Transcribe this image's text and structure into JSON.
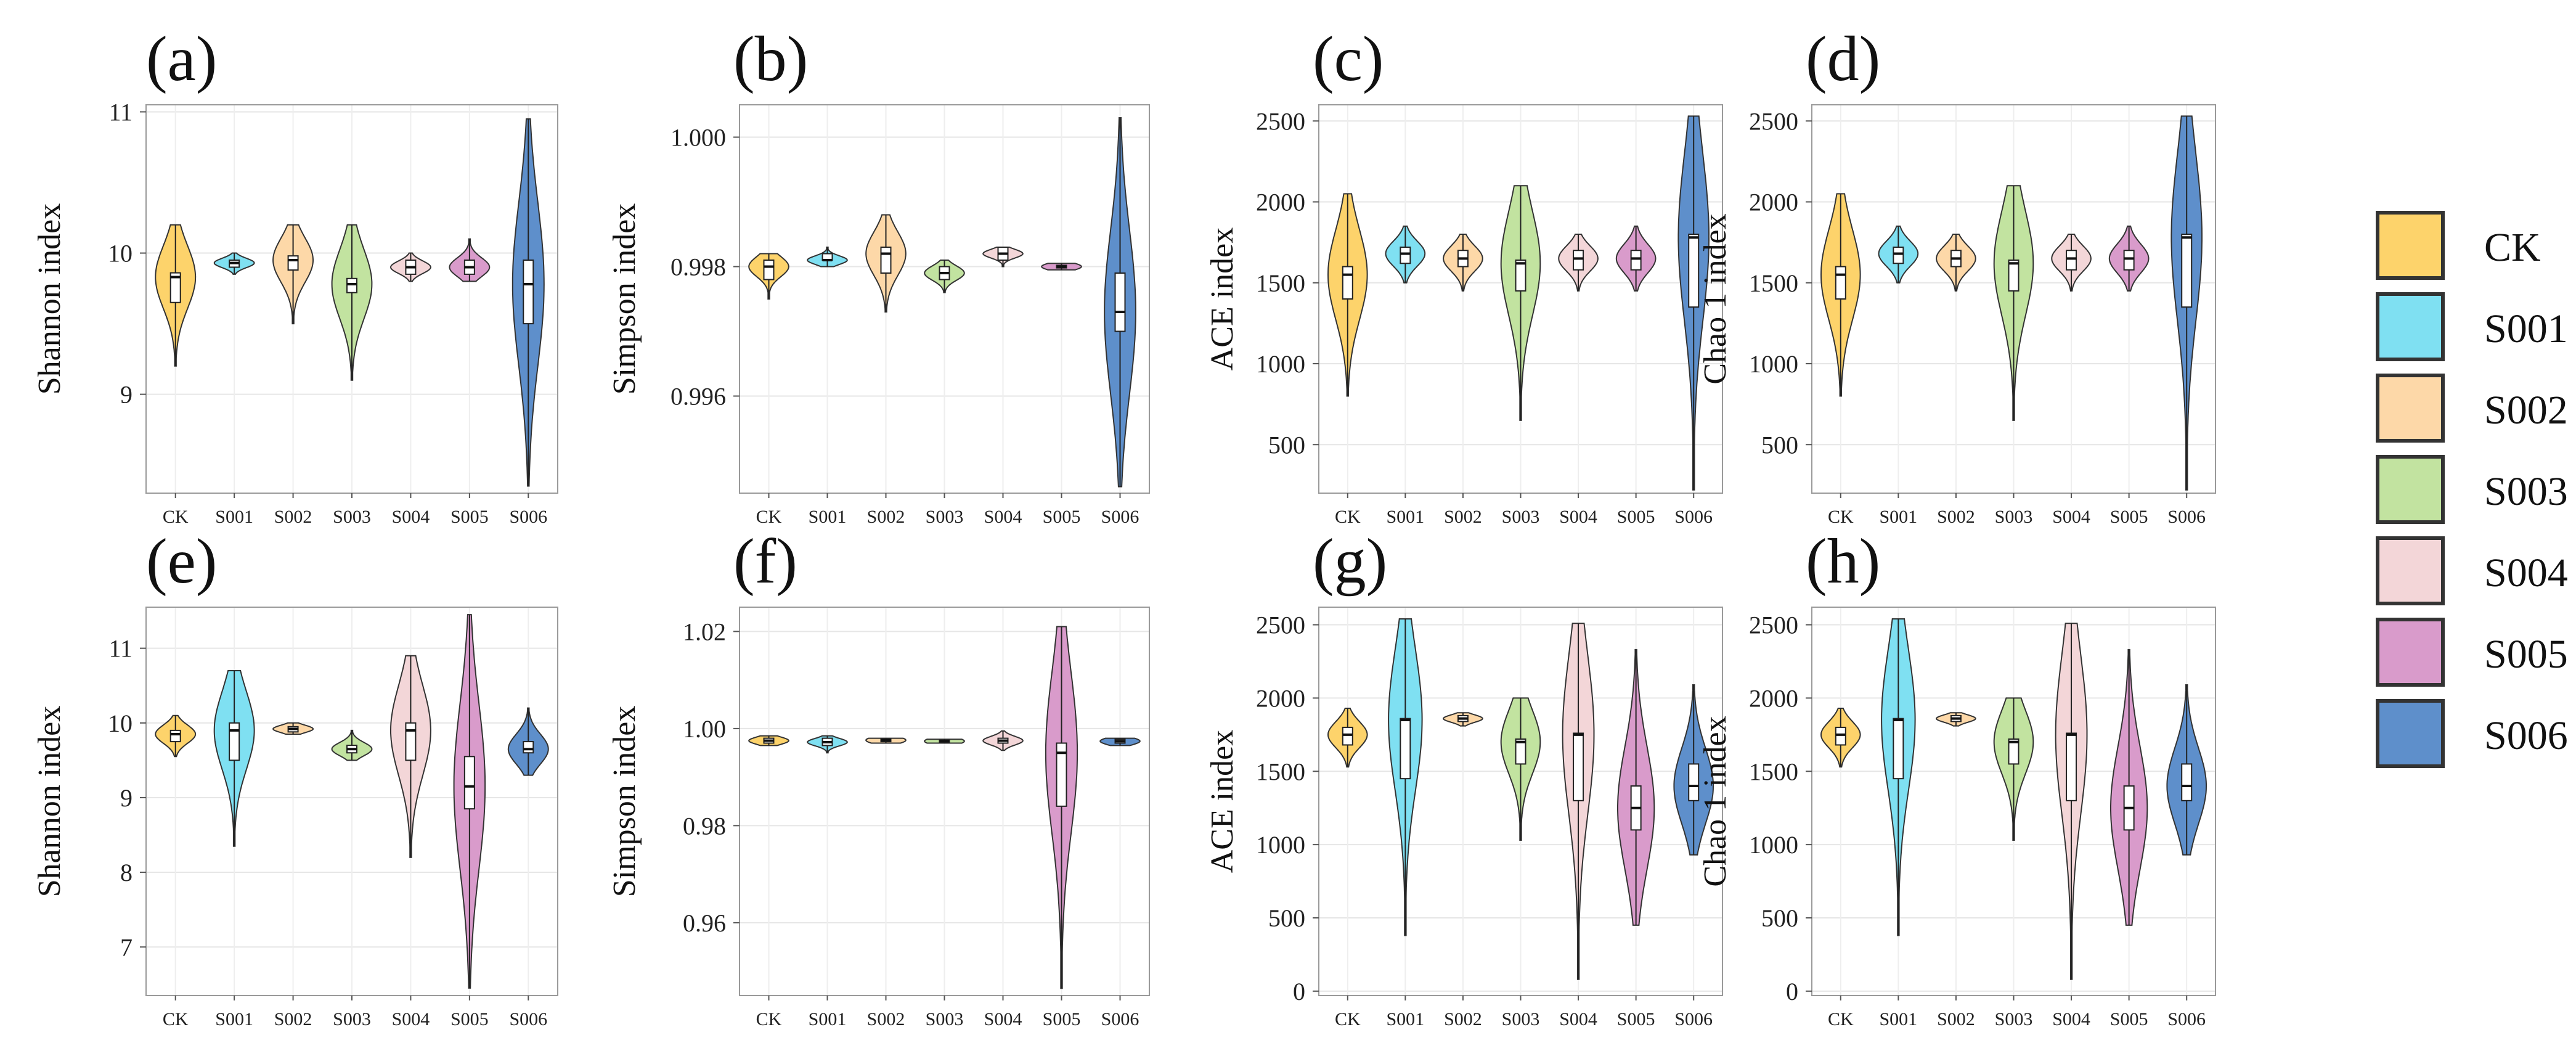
{
  "colors": {
    "CK": "#FDD36B",
    "S001": "#7FE0F2",
    "S002": "#FDD8A8",
    "S003": "#C2E3A0",
    "S004": "#F3D6D8",
    "S005": "#D99BCB",
    "S006": "#5E8FCB"
  },
  "legend": {
    "items": [
      {
        "label": "CK",
        "key": "CK"
      },
      {
        "label": "S001",
        "key": "S001"
      },
      {
        "label": "S002",
        "key": "S002"
      },
      {
        "label": "S003",
        "key": "S003"
      },
      {
        "label": "S004",
        "key": "S004"
      },
      {
        "label": "S005",
        "key": "S005"
      },
      {
        "label": "S006",
        "key": "S006"
      }
    ]
  },
  "chart_data": [
    {
      "panel": "(a)",
      "type": "violin",
      "ylabel": "Shannon index",
      "categories": [
        "CK",
        "S001",
        "S002",
        "S003",
        "S004",
        "S005",
        "S006"
      ],
      "ylim": [
        8.3,
        11.05
      ],
      "yticks": [
        9,
        10,
        11
      ],
      "groups": [
        {
          "min": 9.2,
          "q1": 9.65,
          "median": 9.83,
          "q3": 9.86,
          "max": 10.2
        },
        {
          "min": 9.85,
          "q1": 9.9,
          "median": 9.93,
          "q3": 9.95,
          "max": 10.0
        },
        {
          "min": 9.5,
          "q1": 9.88,
          "median": 9.95,
          "q3": 9.98,
          "max": 10.2
        },
        {
          "min": 9.1,
          "q1": 9.72,
          "median": 9.78,
          "q3": 9.82,
          "max": 10.2
        },
        {
          "min": 9.8,
          "q1": 9.85,
          "median": 9.9,
          "q3": 9.95,
          "max": 10.0
        },
        {
          "min": 9.8,
          "q1": 9.85,
          "median": 9.9,
          "q3": 9.95,
          "max": 10.1
        },
        {
          "min": 8.35,
          "q1": 9.5,
          "median": 9.78,
          "q3": 9.95,
          "max": 10.95
        }
      ]
    },
    {
      "panel": "(b)",
      "type": "violin",
      "ylabel": "Simpson index",
      "categories": [
        "CK",
        "S001",
        "S002",
        "S003",
        "S004",
        "S005",
        "S006"
      ],
      "ylim": [
        0.9945,
        1.0005
      ],
      "yticks": [
        0.996,
        0.998,
        1.0
      ],
      "ytick_labels": [
        "0.996",
        "0.998",
        "1.000"
      ],
      "groups": [
        {
          "min": 0.9975,
          "q1": 0.9978,
          "median": 0.998,
          "q3": 0.9981,
          "max": 0.9982
        },
        {
          "min": 0.998,
          "q1": 0.9981,
          "median": 0.9981,
          "q3": 0.9982,
          "max": 0.9983
        },
        {
          "min": 0.9973,
          "q1": 0.9979,
          "median": 0.9982,
          "q3": 0.9983,
          "max": 0.9988
        },
        {
          "min": 0.9976,
          "q1": 0.9978,
          "median": 0.9979,
          "q3": 0.998,
          "max": 0.9981
        },
        {
          "min": 0.998,
          "q1": 0.9981,
          "median": 0.9982,
          "q3": 0.9983,
          "max": 0.9983
        },
        {
          "min": 0.99795,
          "q1": 0.99798,
          "median": 0.998,
          "q3": 0.99802,
          "max": 0.99805
        },
        {
          "min": 0.9946,
          "q1": 0.997,
          "median": 0.9973,
          "q3": 0.9979,
          "max": 1.0003
        }
      ]
    },
    {
      "panel": "(c)",
      "type": "violin",
      "ylabel": "ACE index",
      "categories": [
        "CK",
        "S001",
        "S002",
        "S003",
        "S004",
        "S005",
        "S006"
      ],
      "ylim": [
        200,
        2600
      ],
      "yticks": [
        500,
        1000,
        1500,
        2000,
        2500
      ],
      "groups": [
        {
          "min": 800,
          "q1": 1400,
          "median": 1550,
          "q3": 1600,
          "max": 2050
        },
        {
          "min": 1500,
          "q1": 1620,
          "median": 1680,
          "q3": 1720,
          "max": 1850
        },
        {
          "min": 1450,
          "q1": 1600,
          "median": 1650,
          "q3": 1700,
          "max": 1800
        },
        {
          "min": 650,
          "q1": 1450,
          "median": 1620,
          "q3": 1640,
          "max": 2100
        },
        {
          "min": 1450,
          "q1": 1580,
          "median": 1650,
          "q3": 1700,
          "max": 1800
        },
        {
          "min": 1450,
          "q1": 1580,
          "median": 1650,
          "q3": 1700,
          "max": 1850
        },
        {
          "min": 220,
          "q1": 1350,
          "median": 1780,
          "q3": 1800,
          "max": 2530
        }
      ]
    },
    {
      "panel": "(d)",
      "type": "violin",
      "ylabel": "Chao 1 index",
      "categories": [
        "CK",
        "S001",
        "S002",
        "S003",
        "S004",
        "S005",
        "S006"
      ],
      "ylim": [
        200,
        2600
      ],
      "yticks": [
        500,
        1000,
        1500,
        2000,
        2500
      ],
      "groups": [
        {
          "min": 800,
          "q1": 1400,
          "median": 1550,
          "q3": 1600,
          "max": 2050
        },
        {
          "min": 1500,
          "q1": 1620,
          "median": 1680,
          "q3": 1720,
          "max": 1850
        },
        {
          "min": 1450,
          "q1": 1600,
          "median": 1650,
          "q3": 1700,
          "max": 1800
        },
        {
          "min": 650,
          "q1": 1450,
          "median": 1620,
          "q3": 1640,
          "max": 2100
        },
        {
          "min": 1450,
          "q1": 1580,
          "median": 1650,
          "q3": 1700,
          "max": 1800
        },
        {
          "min": 1450,
          "q1": 1580,
          "median": 1650,
          "q3": 1700,
          "max": 1850
        },
        {
          "min": 220,
          "q1": 1350,
          "median": 1780,
          "q3": 1800,
          "max": 2530
        }
      ]
    },
    {
      "panel": "(e)",
      "type": "violin",
      "ylabel": "Shannon index",
      "categories": [
        "CK",
        "S001",
        "S002",
        "S003",
        "S004",
        "S005",
        "S006"
      ],
      "ylim": [
        6.35,
        11.55
      ],
      "yticks": [
        7,
        8,
        9,
        10,
        11
      ],
      "groups": [
        {
          "min": 9.55,
          "q1": 9.75,
          "median": 9.85,
          "q3": 9.9,
          "max": 10.1
        },
        {
          "min": 8.35,
          "q1": 9.5,
          "median": 9.9,
          "q3": 10.0,
          "max": 10.7
        },
        {
          "min": 9.85,
          "q1": 9.88,
          "median": 9.92,
          "q3": 9.95,
          "max": 10.0
        },
        {
          "min": 9.5,
          "q1": 9.6,
          "median": 9.65,
          "q3": 9.7,
          "max": 9.9
        },
        {
          "min": 8.2,
          "q1": 9.5,
          "median": 9.9,
          "q3": 10.0,
          "max": 10.9
        },
        {
          "min": 6.45,
          "q1": 8.85,
          "median": 9.15,
          "q3": 9.55,
          "max": 11.45
        },
        {
          "min": 9.3,
          "q1": 9.6,
          "median": 9.65,
          "q3": 9.75,
          "max": 10.2
        }
      ]
    },
    {
      "panel": "(f)",
      "type": "violin",
      "ylabel": "Simpson index",
      "categories": [
        "CK",
        "S001",
        "S002",
        "S003",
        "S004",
        "S005",
        "S006"
      ],
      "ylim": [
        0.945,
        1.025
      ],
      "yticks": [
        0.96,
        0.98,
        1.0,
        1.02
      ],
      "ytick_labels": [
        "0.96",
        "0.98",
        "1.00",
        "1.02"
      ],
      "groups": [
        {
          "min": 0.9965,
          "q1": 0.997,
          "median": 0.9975,
          "q3": 0.998,
          "max": 0.9985
        },
        {
          "min": 0.995,
          "q1": 0.9965,
          "median": 0.9972,
          "q3": 0.998,
          "max": 0.9985
        },
        {
          "min": 0.997,
          "q1": 0.9973,
          "median": 0.9976,
          "q3": 0.9978,
          "max": 0.998
        },
        {
          "min": 0.997,
          "q1": 0.9972,
          "median": 0.9974,
          "q3": 0.9976,
          "max": 0.9978
        },
        {
          "min": 0.9955,
          "q1": 0.997,
          "median": 0.9975,
          "q3": 0.998,
          "max": 0.9995
        },
        {
          "min": 0.9465,
          "q1": 0.984,
          "median": 0.995,
          "q3": 0.997,
          "max": 1.021
        },
        {
          "min": 0.9965,
          "q1": 0.997,
          "median": 0.9974,
          "q3": 0.9978,
          "max": 0.998
        }
      ]
    },
    {
      "panel": "(g)",
      "type": "violin",
      "ylabel": "ACE index",
      "categories": [
        "CK",
        "S001",
        "S002",
        "S003",
        "S004",
        "S005",
        "S006"
      ],
      "ylim": [
        -30,
        2620
      ],
      "yticks": [
        0,
        500,
        1000,
        1500,
        2000,
        2500
      ],
      "groups": [
        {
          "min": 1530,
          "q1": 1680,
          "median": 1750,
          "q3": 1800,
          "max": 1930
        },
        {
          "min": 380,
          "q1": 1450,
          "median": 1850,
          "q3": 1860,
          "max": 2540
        },
        {
          "min": 1810,
          "q1": 1840,
          "median": 1860,
          "q3": 1880,
          "max": 1900
        },
        {
          "min": 1030,
          "q1": 1550,
          "median": 1700,
          "q3": 1720,
          "max": 2000
        },
        {
          "min": 80,
          "q1": 1300,
          "median": 1750,
          "q3": 1760,
          "max": 2510
        },
        {
          "min": 450,
          "q1": 1100,
          "median": 1250,
          "q3": 1400,
          "max": 2330
        },
        {
          "min": 930,
          "q1": 1300,
          "median": 1400,
          "q3": 1550,
          "max": 2090
        }
      ]
    },
    {
      "panel": "(h)",
      "type": "violin",
      "ylabel": "Chao 1  index",
      "categories": [
        "CK",
        "S001",
        "S002",
        "S003",
        "S004",
        "S005",
        "S006"
      ],
      "ylim": [
        -30,
        2620
      ],
      "yticks": [
        0,
        500,
        1000,
        1500,
        2000,
        2500
      ],
      "groups": [
        {
          "min": 1530,
          "q1": 1680,
          "median": 1750,
          "q3": 1800,
          "max": 1930
        },
        {
          "min": 380,
          "q1": 1450,
          "median": 1850,
          "q3": 1860,
          "max": 2540
        },
        {
          "min": 1810,
          "q1": 1840,
          "median": 1860,
          "q3": 1880,
          "max": 1900
        },
        {
          "min": 1030,
          "q1": 1550,
          "median": 1700,
          "q3": 1720,
          "max": 2000
        },
        {
          "min": 80,
          "q1": 1300,
          "median": 1750,
          "q3": 1760,
          "max": 2510
        },
        {
          "min": 450,
          "q1": 1100,
          "median": 1250,
          "q3": 1400,
          "max": 2330
        },
        {
          "min": 930,
          "q1": 1300,
          "median": 1400,
          "q3": 1550,
          "max": 2090
        }
      ]
    }
  ]
}
